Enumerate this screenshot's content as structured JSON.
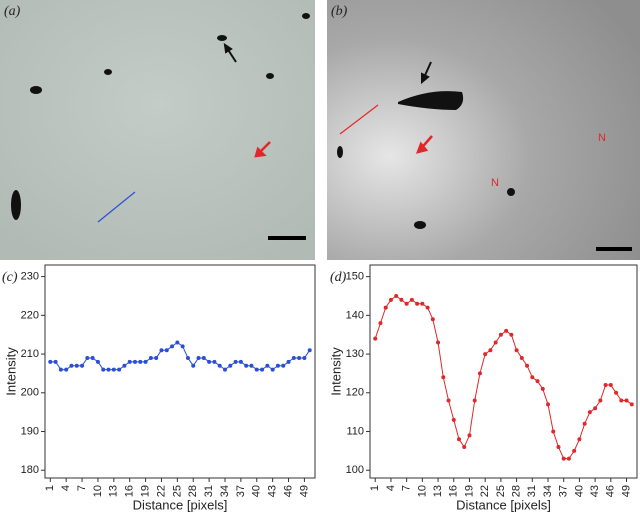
{
  "images": [
    {
      "panel_label": "(a)"
    },
    {
      "panel_label": "(b)",
      "annotations": [
        "N",
        "N"
      ]
    }
  ],
  "chart_data": [
    {
      "type": "line",
      "panel_label": "(c)",
      "x_label": "Distance [pixels]",
      "y_label": "Intensity",
      "x": [
        1,
        2,
        3,
        4,
        5,
        6,
        7,
        8,
        9,
        10,
        11,
        12,
        13,
        14,
        15,
        16,
        17,
        18,
        19,
        20,
        21,
        22,
        23,
        24,
        25,
        26,
        27,
        28,
        29,
        30,
        31,
        32,
        33,
        34,
        35,
        36,
        37,
        38,
        39,
        40,
        41,
        42,
        43,
        44,
        45,
        46,
        47,
        48,
        49,
        50
      ],
      "series": [
        {
          "color": "#2a4fd6",
          "values": [
            208,
            208,
            206,
            206,
            207,
            207,
            207,
            209,
            209,
            208,
            206,
            206,
            206,
            206,
            207,
            208,
            208,
            208,
            208,
            209,
            209,
            211,
            211,
            212,
            213,
            212,
            209,
            207,
            209,
            209,
            208,
            208,
            207,
            206,
            207,
            208,
            208,
            207,
            207,
            206,
            206,
            207,
            206,
            207,
            207,
            208,
            209,
            209,
            209,
            211
          ]
        }
      ],
      "xlim": [
        0,
        51
      ],
      "xticks": [
        1,
        4,
        7,
        10,
        13,
        16,
        19,
        22,
        25,
        28,
        31,
        34,
        37,
        40,
        43,
        46,
        49
      ],
      "ylim": [
        178,
        233
      ],
      "yticks": [
        180,
        190,
        200,
        210,
        220,
        230
      ]
    },
    {
      "type": "line",
      "panel_label": "(d)",
      "x_label": "Distance [pixels]",
      "y_label": "Intensity",
      "x": [
        1,
        2,
        3,
        4,
        5,
        6,
        7,
        8,
        9,
        10,
        11,
        12,
        13,
        14,
        15,
        16,
        17,
        18,
        19,
        20,
        21,
        22,
        23,
        24,
        25,
        26,
        27,
        28,
        29,
        30,
        31,
        32,
        33,
        34,
        35,
        36,
        37,
        38,
        39,
        40,
        41,
        42,
        43,
        44,
        45,
        46,
        47,
        48,
        49,
        50
      ],
      "series": [
        {
          "color": "#e0282a",
          "values": [
            134,
            138,
            142,
            144,
            145,
            144,
            143,
            144,
            143,
            143,
            142,
            139,
            133,
            124,
            118,
            113,
            108,
            106,
            109,
            118,
            125,
            130,
            131,
            133,
            135,
            136,
            135,
            131,
            129,
            127,
            124,
            123,
            121,
            117,
            110,
            106,
            103,
            103,
            105,
            108,
            112,
            115,
            116,
            118,
            122,
            122,
            120,
            118,
            118,
            117
          ]
        }
      ],
      "xlim": [
        0,
        51
      ],
      "xticks": [
        1,
        4,
        7,
        10,
        13,
        16,
        19,
        22,
        25,
        28,
        31,
        34,
        37,
        40,
        43,
        46,
        49
      ],
      "ylim": [
        98,
        153
      ],
      "yticks": [
        100,
        110,
        120,
        130,
        140,
        150
      ]
    }
  ]
}
